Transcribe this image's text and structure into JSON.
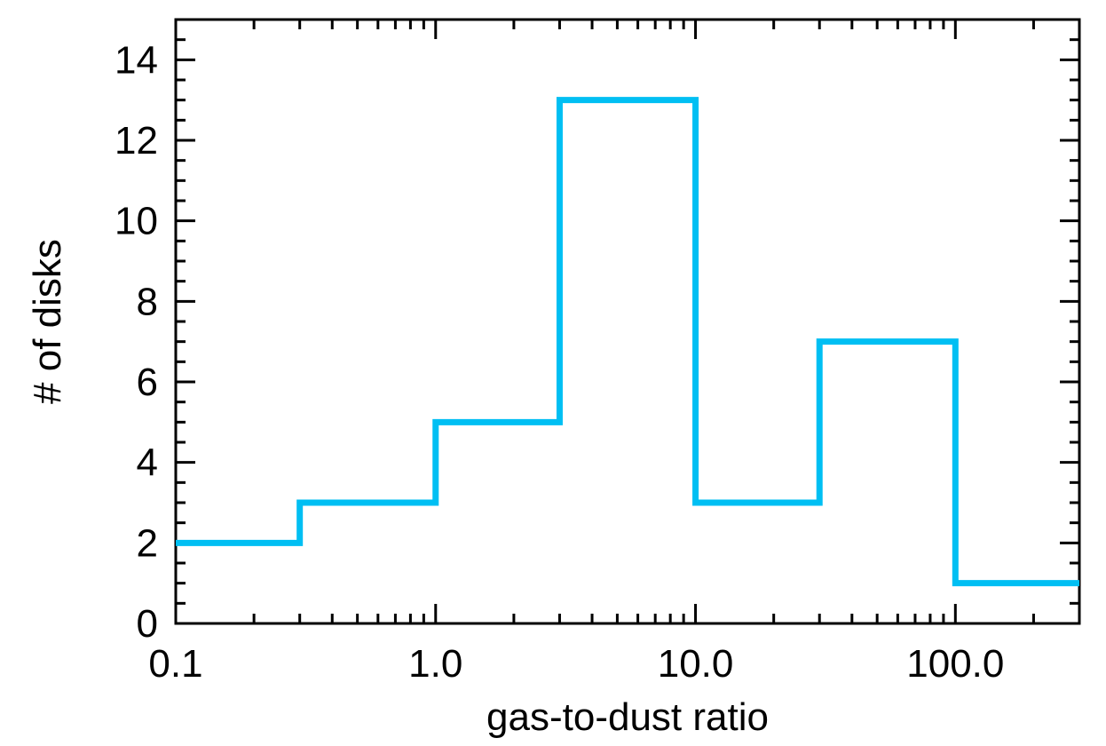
{
  "chart_data": {
    "type": "histogram",
    "xlabel": "gas-to-dust ratio",
    "ylabel": "# of disks",
    "xscale": "log",
    "xlim": [
      0.1,
      300
    ],
    "ylim": [
      0,
      15
    ],
    "xticks": [
      {
        "value": 0.1,
        "label": "0.1"
      },
      {
        "value": 1,
        "label": "1.0"
      },
      {
        "value": 10,
        "label": "10.0"
      },
      {
        "value": 100,
        "label": "100.0"
      }
    ],
    "yticks": [
      {
        "value": 0,
        "label": "0"
      },
      {
        "value": 2,
        "label": "2"
      },
      {
        "value": 4,
        "label": "4"
      },
      {
        "value": 6,
        "label": "6"
      },
      {
        "value": 8,
        "label": "8"
      },
      {
        "value": 10,
        "label": "10"
      },
      {
        "value": 12,
        "label": "12"
      },
      {
        "value": 14,
        "label": "14"
      }
    ],
    "bin_edges": [
      0.1,
      0.3,
      1,
      3,
      10,
      30,
      100,
      300
    ],
    "counts": [
      2,
      3,
      5,
      13,
      3,
      7,
      1
    ],
    "line_color": "#00bff3",
    "grid": false
  }
}
